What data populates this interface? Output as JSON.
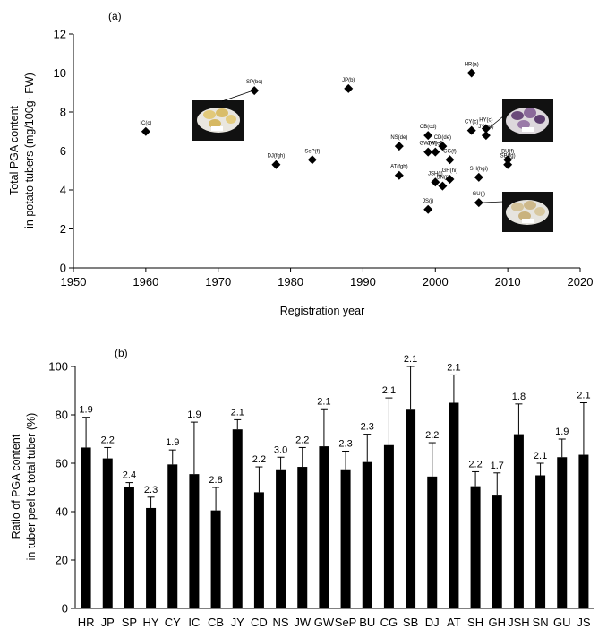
{
  "chart_data": [
    {
      "type": "scatter",
      "panel": "(a)",
      "xlabel": "Registration year",
      "ylabel_lines": [
        "Total PGA content",
        "in potato tubers (mg/100g· FW)"
      ],
      "xlim": [
        1950,
        2020
      ],
      "ylim": [
        0,
        12
      ],
      "xticks": [
        1950,
        1960,
        1970,
        1980,
        1990,
        2000,
        2010,
        2020
      ],
      "yticks": [
        0,
        2,
        4,
        6,
        8,
        10,
        12
      ],
      "grid": false,
      "marker": "diamond",
      "points": [
        {
          "label": "IC(c)",
          "x": 1960,
          "y": 7.0
        },
        {
          "label": "SP(bc)",
          "x": 1975,
          "y": 9.1
        },
        {
          "label": "DJ(fgh)",
          "x": 1978,
          "y": 5.3
        },
        {
          "label": "SeP(f)",
          "x": 1983,
          "y": 5.55
        },
        {
          "label": "JP(b)",
          "x": 1988,
          "y": 9.2
        },
        {
          "label": "NS(de)",
          "x": 1995,
          "y": 6.25
        },
        {
          "label": "AT(fgh)",
          "x": 1995,
          "y": 4.75
        },
        {
          "label": "CB(cd)",
          "x": 1999,
          "y": 6.8
        },
        {
          "label": "GW(ef)",
          "x": 1999,
          "y": 5.95
        },
        {
          "label": "JW(ef)",
          "x": 2000,
          "y": 5.95
        },
        {
          "label": "CD(de)",
          "x": 2001,
          "y": 6.25
        },
        {
          "label": "CG(f)",
          "x": 2002,
          "y": 5.55
        },
        {
          "label": "GH(hi)",
          "x": 2002,
          "y": 4.55
        },
        {
          "label": "JSH(i)",
          "x": 2000,
          "y": 4.4
        },
        {
          "label": "SN(i)",
          "x": 2001,
          "y": 4.2
        },
        {
          "label": "JS(j)",
          "x": 1999,
          "y": 3.0
        },
        {
          "label": "CY(c)",
          "x": 2005,
          "y": 7.05
        },
        {
          "label": "HR(a)",
          "x": 2005,
          "y": 10.0
        },
        {
          "label": "HY(c)",
          "x": 2007,
          "y": 7.15
        },
        {
          "label": "JY(cd)",
          "x": 2007,
          "y": 6.8
        },
        {
          "label": "BU(f)",
          "x": 2010,
          "y": 5.55
        },
        {
          "label": "SB(fg)",
          "x": 2010,
          "y": 5.3
        },
        {
          "label": "SH(hgi)",
          "x": 2006,
          "y": 4.65
        },
        {
          "label": "GU(j)",
          "x": 2006,
          "y": 3.35
        }
      ]
    },
    {
      "type": "bar",
      "panel": "(b)",
      "xlabel": "",
      "ylabel_lines": [
        "Ratio of PGA content",
        "in tuber peel to total tuber (%)"
      ],
      "ylim": [
        0,
        100
      ],
      "yticks": [
        0,
        20,
        40,
        60,
        80,
        100
      ],
      "grid": false,
      "bar_color": "#000000",
      "error_bars": "upper",
      "categories": [
        "HR",
        "JP",
        "SP",
        "HY",
        "CY",
        "IC",
        "CB",
        "JY",
        "CD",
        "NS",
        "JW",
        "GW",
        "SeP",
        "BU",
        "CG",
        "SB",
        "DJ",
        "AT",
        "SH",
        "GH",
        "JSH",
        "SN",
        "GU",
        "JS"
      ],
      "values": [
        66.5,
        62,
        50,
        41.5,
        59.5,
        55.5,
        40.5,
        74,
        48,
        57.5,
        58.5,
        67,
        57.5,
        60.5,
        67.5,
        82.5,
        54.5,
        85,
        50.5,
        47,
        72,
        55,
        62.5,
        63.5
      ],
      "errors": [
        12.5,
        4.5,
        2,
        4.5,
        6,
        21.5,
        9.5,
        4,
        10.5,
        5,
        8,
        15.5,
        7.5,
        11.5,
        19.5,
        17.5,
        14,
        11.5,
        6,
        9,
        12.5,
        5,
        7.5,
        21.5
      ],
      "annotations": [
        "1.9",
        "2.2",
        "2.4",
        "2.3",
        "1.9",
        "1.9",
        "2.8",
        "2.1",
        "2.2",
        "3.0",
        "2.2",
        "2.1",
        "2.3",
        "2.3",
        "2.1",
        "2.1",
        "2.2",
        "2.1",
        "2.2",
        "1.7",
        "1.8",
        "2.1",
        "1.9",
        "2.1"
      ]
    }
  ]
}
